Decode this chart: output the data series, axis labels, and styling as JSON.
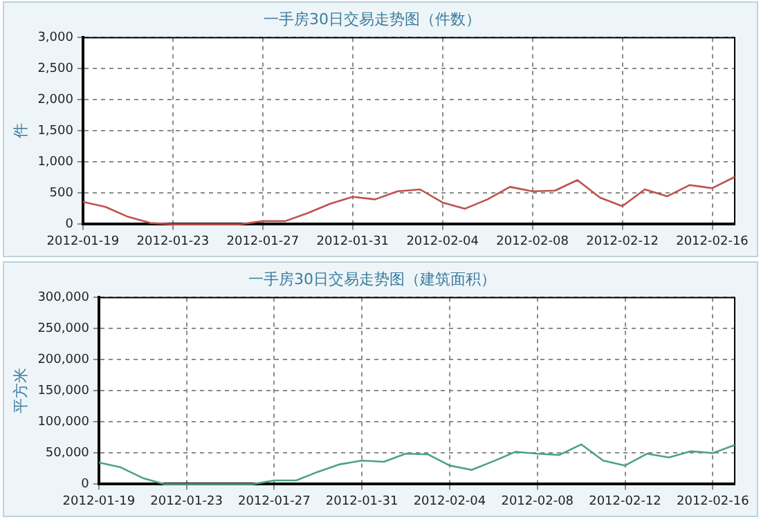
{
  "chart_data": [
    {
      "type": "line",
      "title": "一手房30日交易走势图（件数）",
      "ylabel": "件",
      "x": [
        "2012-01-19",
        "2012-01-20",
        "2012-01-21",
        "2012-01-22",
        "2012-01-23",
        "2012-01-24",
        "2012-01-25",
        "2012-01-26",
        "2012-01-27",
        "2012-01-28",
        "2012-01-29",
        "2012-01-30",
        "2012-01-31",
        "2012-02-01",
        "2012-02-02",
        "2012-02-03",
        "2012-02-04",
        "2012-02-05",
        "2012-02-06",
        "2012-02-07",
        "2012-02-08",
        "2012-02-09",
        "2012-02-10",
        "2012-02-11",
        "2012-02-12",
        "2012-02-13",
        "2012-02-14",
        "2012-02-15",
        "2012-02-16",
        "2012-02-17"
      ],
      "series": [
        {
          "color": "#c0504d",
          "values": [
            360,
            280,
            120,
            20,
            0,
            0,
            0,
            0,
            50,
            50,
            180,
            330,
            440,
            400,
            530,
            560,
            350,
            250,
            400,
            600,
            530,
            540,
            710,
            430,
            290,
            560,
            450,
            630,
            580,
            760
          ]
        }
      ],
      "xlim": [
        "2012-01-19",
        "2012-02-17"
      ],
      "xticks": [
        "2012-01-19",
        "2012-01-23",
        "2012-01-27",
        "2012-01-31",
        "2012-02-04",
        "2012-02-08",
        "2012-02-12",
        "2012-02-16"
      ],
      "ylim": [
        0,
        3000
      ],
      "yticks": [
        {
          "value": 0,
          "label": "0"
        },
        {
          "value": 500,
          "label": "500"
        },
        {
          "value": 1000,
          "label": "1,000"
        },
        {
          "value": 1500,
          "label": "1,500"
        },
        {
          "value": 2000,
          "label": "2,000"
        },
        {
          "value": 2500,
          "label": "2,500"
        },
        {
          "value": 3000,
          "label": "3,000"
        }
      ],
      "grid": true,
      "legend": false,
      "marker": "none",
      "line_style": "solid"
    },
    {
      "type": "line",
      "title": "一手房30日交易走势图（建筑面积）",
      "ylabel": "平方米",
      "x": [
        "2012-01-19",
        "2012-01-20",
        "2012-01-21",
        "2012-01-22",
        "2012-01-23",
        "2012-01-24",
        "2012-01-25",
        "2012-01-26",
        "2012-01-27",
        "2012-01-28",
        "2012-01-29",
        "2012-01-30",
        "2012-01-31",
        "2012-02-01",
        "2012-02-02",
        "2012-02-03",
        "2012-02-04",
        "2012-02-05",
        "2012-02-06",
        "2012-02-07",
        "2012-02-08",
        "2012-02-09",
        "2012-02-10",
        "2012-02-11",
        "2012-02-12",
        "2012-02-13",
        "2012-02-14",
        "2012-02-15",
        "2012-02-16",
        "2012-02-17"
      ],
      "series": [
        {
          "color": "#4aa383",
          "values": [
            35000,
            27000,
            10000,
            0,
            0,
            0,
            0,
            0,
            6000,
            6000,
            20000,
            32000,
            38000,
            36000,
            49000,
            48000,
            30000,
            23000,
            37000,
            52000,
            49000,
            47000,
            64000,
            38000,
            30000,
            49000,
            43000,
            53000,
            50000,
            63000
          ]
        }
      ],
      "xlim": [
        "2012-01-19",
        "2012-02-17"
      ],
      "xticks": [
        "2012-01-19",
        "2012-01-23",
        "2012-01-27",
        "2012-01-31",
        "2012-02-04",
        "2012-02-08",
        "2012-02-12",
        "2012-02-16"
      ],
      "ylim": [
        0,
        300000
      ],
      "yticks": [
        {
          "value": 0,
          "label": "0"
        },
        {
          "value": 50000,
          "label": "50,000"
        },
        {
          "value": 100000,
          "label": "100,000"
        },
        {
          "value": 150000,
          "label": "150,000"
        },
        {
          "value": 200000,
          "label": "200,000"
        },
        {
          "value": 250000,
          "label": "250,000"
        },
        {
          "value": 300000,
          "label": "300,000"
        }
      ],
      "grid": true,
      "legend": false,
      "marker": "none",
      "line_style": "solid"
    }
  ]
}
